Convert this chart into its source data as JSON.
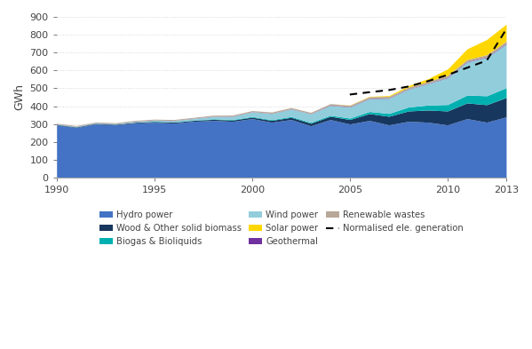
{
  "years": [
    1990,
    1991,
    1992,
    1993,
    1994,
    1995,
    1996,
    1997,
    1998,
    1999,
    2000,
    2001,
    2002,
    2003,
    2004,
    2005,
    2006,
    2007,
    2008,
    2009,
    2010,
    2011,
    2012,
    2013
  ],
  "hydro": [
    295,
    280,
    300,
    295,
    305,
    310,
    305,
    315,
    320,
    315,
    330,
    310,
    325,
    290,
    325,
    300,
    320,
    295,
    315,
    310,
    295,
    330,
    310,
    340
  ],
  "wood_biomass": [
    2,
    3,
    3,
    3,
    4,
    4,
    5,
    5,
    6,
    7,
    8,
    10,
    12,
    14,
    18,
    25,
    38,
    48,
    58,
    68,
    78,
    88,
    98,
    108
  ],
  "biogas": [
    1,
    1,
    1,
    1,
    1,
    2,
    2,
    2,
    3,
    3,
    4,
    4,
    5,
    5,
    6,
    8,
    12,
    16,
    22,
    28,
    36,
    44,
    50,
    55
  ],
  "wind": [
    1,
    2,
    2,
    3,
    4,
    5,
    7,
    9,
    13,
    18,
    26,
    35,
    42,
    48,
    55,
    62,
    72,
    85,
    100,
    120,
    150,
    185,
    215,
    245
  ],
  "geothermal": [
    1,
    1,
    1,
    1,
    1,
    1,
    1,
    1,
    1,
    1,
    1,
    1,
    1,
    1,
    2,
    2,
    2,
    2,
    2,
    2,
    3,
    3,
    3,
    4
  ],
  "renewable_wastes": [
    4,
    4,
    4,
    4,
    5,
    5,
    5,
    5,
    6,
    6,
    6,
    7,
    7,
    7,
    8,
    8,
    9,
    9,
    10,
    10,
    11,
    11,
    12,
    12
  ],
  "solar": [
    0,
    0,
    0,
    0,
    0,
    0,
    0,
    0,
    0,
    0,
    0,
    0,
    0,
    0,
    0,
    1,
    2,
    4,
    8,
    16,
    35,
    60,
    85,
    95
  ],
  "normalised": [
    null,
    null,
    null,
    null,
    null,
    null,
    null,
    null,
    null,
    null,
    null,
    null,
    null,
    null,
    null,
    465,
    478,
    490,
    510,
    540,
    575,
    615,
    655,
    830
  ],
  "colors": {
    "hydro": "#4472C4",
    "wood_biomass": "#17375E",
    "biogas": "#00B0B0",
    "wind": "#92CDDC",
    "geothermal": "#7030A0",
    "renewable_wastes": "#B8A898",
    "solar": "#FFD700"
  },
  "ylabel": "GWh",
  "ylim": [
    0,
    900
  ],
  "yticks": [
    0,
    100,
    200,
    300,
    400,
    500,
    600,
    700,
    800,
    900
  ],
  "background_color": "#ffffff",
  "grid_color": "#d0d0d0"
}
